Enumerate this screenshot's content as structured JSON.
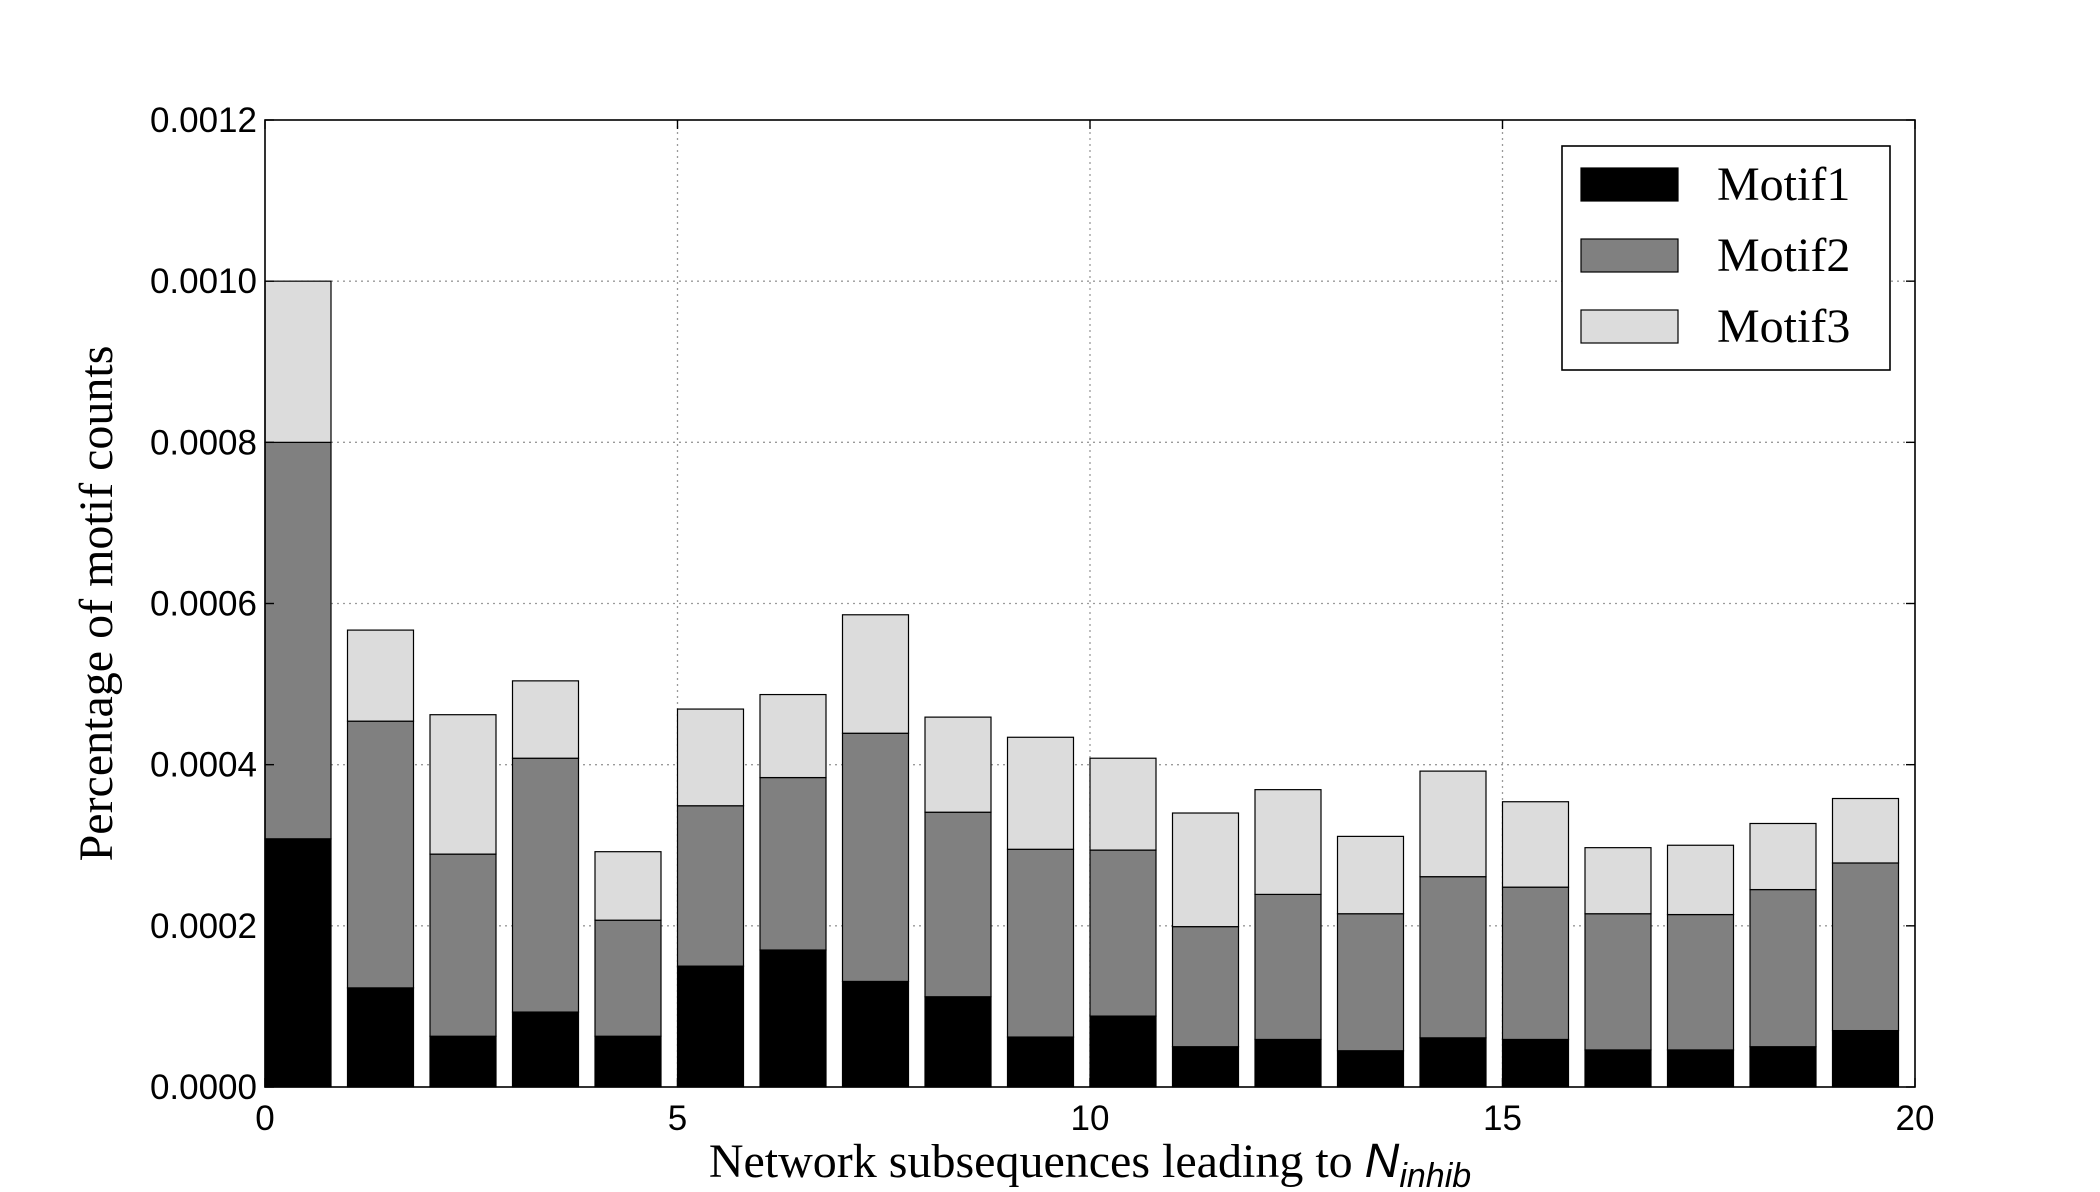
{
  "chart_data": {
    "type": "bar",
    "stacked": true,
    "title": "",
    "xlabel": "Network subsequences leading to ",
    "xlabel_math": "N",
    "xlabel_sub": "inhib",
    "ylabel": "Percentage of motif counts",
    "xlim": [
      0,
      20
    ],
    "ylim": [
      0,
      0.0012
    ],
    "xticks": [
      0,
      5,
      10,
      15,
      20
    ],
    "xtick_labels": [
      "0",
      "5",
      "10",
      "15",
      "20"
    ],
    "yticks": [
      0,
      0.0002,
      0.0004,
      0.0006,
      0.0008,
      0.001,
      0.0012
    ],
    "ytick_labels": [
      "0.0000",
      "0.0002",
      "0.0004",
      "0.0006",
      "0.0008",
      "0.0010",
      "0.0012"
    ],
    "grid": true,
    "legend_position": "top-right",
    "bar_width": 0.8,
    "x": [
      0,
      1,
      2,
      3,
      4,
      5,
      6,
      7,
      8,
      9,
      10,
      11,
      12,
      13,
      14,
      15,
      16,
      17,
      18,
      19
    ],
    "series": [
      {
        "name": "Motif1",
        "color": "#000000",
        "values": [
          0.000308,
          0.000123,
          6.3e-05,
          9.3e-05,
          6.3e-05,
          0.00015,
          0.00017,
          0.000131,
          0.000112,
          6.2e-05,
          8.8e-05,
          5e-05,
          5.9e-05,
          4.5e-05,
          6.1e-05,
          5.9e-05,
          4.6e-05,
          4.6e-05,
          5e-05,
          7e-05
        ]
      },
      {
        "name": "Motif2",
        "color": "#808080",
        "values": [
          0.000492,
          0.000331,
          0.000226,
          0.000315,
          0.000144,
          0.000199,
          0.000214,
          0.000308,
          0.000229,
          0.000233,
          0.000206,
          0.000149,
          0.00018,
          0.00017,
          0.0002,
          0.000189,
          0.000169,
          0.000168,
          0.000195,
          0.000208
        ]
      },
      {
        "name": "Motif3",
        "color": "#dcdcdc",
        "values": [
          0.0002,
          0.000113,
          0.000173,
          9.6e-05,
          8.5e-05,
          0.00012,
          0.000103,
          0.000147,
          0.000118,
          0.000139,
          0.000114,
          0.000141,
          0.00013,
          9.6e-05,
          0.000131,
          0.000106,
          8.2e-05,
          8.6e-05,
          8.2e-05,
          8e-05
        ]
      }
    ]
  }
}
